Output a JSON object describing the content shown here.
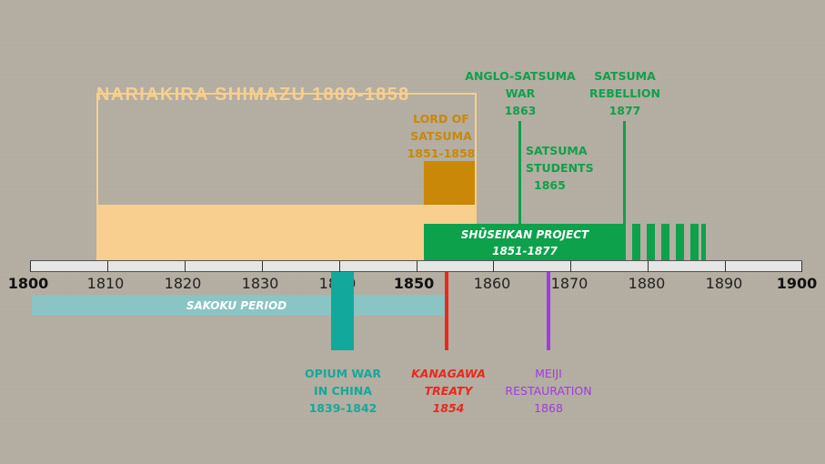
{
  "title": "NARIAKIRA SHIMAZU 1809-1858",
  "lord": {
    "l1": "LORD OF",
    "l2": "SATSUMA",
    "l3": "1851-1858"
  },
  "shuseikan": {
    "l1": "SHŪSEIKAN PROJECT",
    "l2": "1851-1877"
  },
  "anglo": {
    "l1": "ANGLO-SATSUMA",
    "l2": "WAR",
    "l3": "1863"
  },
  "rebellion": {
    "l1": "SATSUMA",
    "l2": "REBELLION",
    "l3": "1877"
  },
  "students": {
    "l1": "SATSUMA",
    "l2": "STUDENTS",
    "l3": "1865"
  },
  "sakoku": "SAKOKU PERIOD",
  "opium": {
    "l1": "OPIUM WAR",
    "l2": "IN CHINA",
    "l3": "1839-1842"
  },
  "kanagawa": {
    "l1": "KANAGAWA",
    "l2": "TREATY",
    "l3": "1854"
  },
  "meiji": {
    "l1": "MEIJI",
    "l2": "RESTAURATION",
    "l3": "1868"
  },
  "axis_years": [
    "1800",
    "1810",
    "1820",
    "1830",
    "1840",
    "1850",
    "1860",
    "1870",
    "1880",
    "1890",
    "1900"
  ],
  "colors": {
    "nariakira": "#f8cf8e",
    "lord": "#c98807",
    "shuseikan": "#0da14b",
    "sakoku": "#8ac4c4",
    "opium": "#12a99c",
    "kanagawa": "#e8291d",
    "meiji": "#a13ae4"
  }
}
